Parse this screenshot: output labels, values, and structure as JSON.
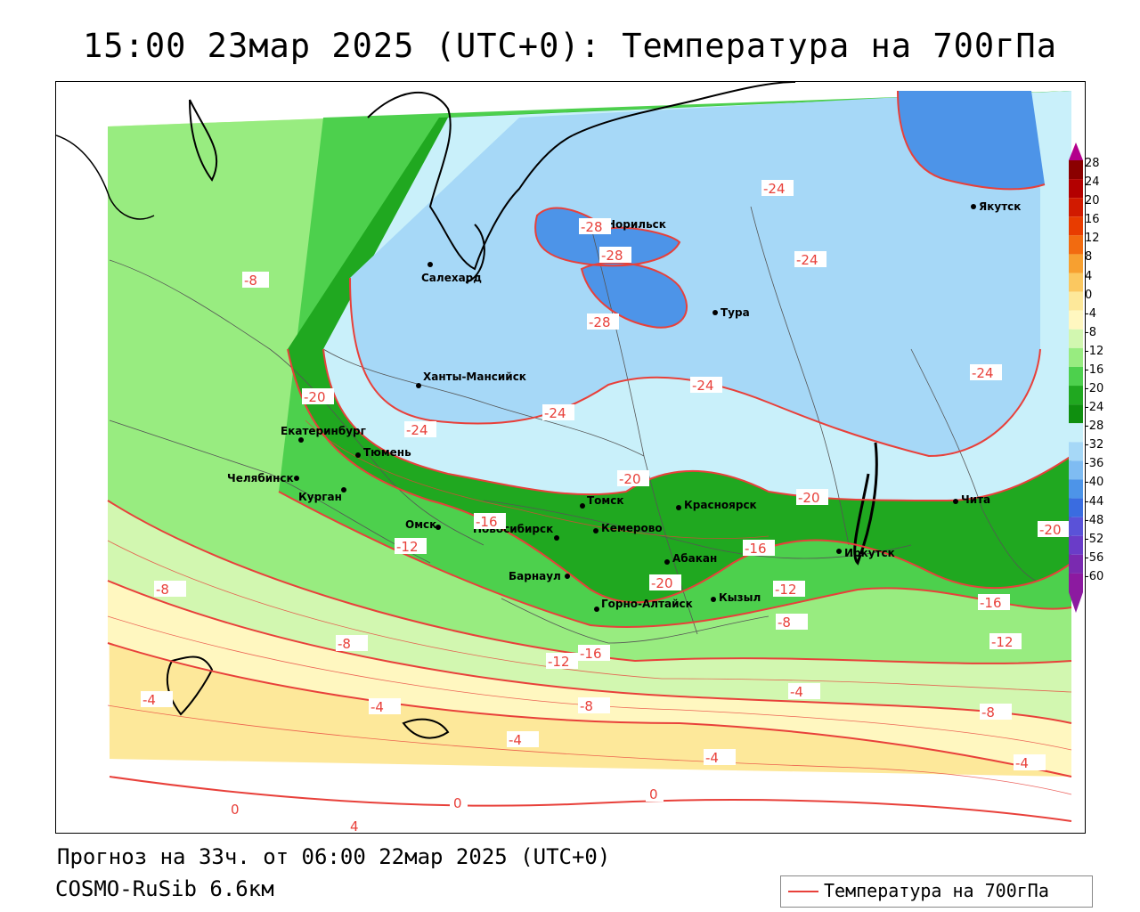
{
  "title": "15:00 23мар 2025 (UTC+0): Температура на 700гПа",
  "forecast_note": "Прогноз на 33ч. от 06:00 22мар 2025 (UTC+0)",
  "model_name": "COSMO-RuSib 6.6км",
  "legend": {
    "label": "Температура на 700гПа",
    "line_color": "#e8403a"
  },
  "scale": {
    "labels": [
      "28",
      "24",
      "20",
      "16",
      "12",
      "8",
      "4",
      "0",
      "-4",
      "-8",
      "-12",
      "-16",
      "-20",
      "-24",
      "-28",
      "-32",
      "-36",
      "-40",
      "-44",
      "-48",
      "-52",
      "-56",
      "-60"
    ],
    "colors": [
      "#8b0000",
      "#b30000",
      "#d11a00",
      "#e83c00",
      "#f26b10",
      "#f7a030",
      "#fbc860",
      "#fde89a",
      "#fff7c0",
      "#d2f7b0",
      "#98ec80",
      "#4dd04d",
      "#20a820",
      "#0f8f0f",
      "#c9f0fa",
      "#a6d8f7",
      "#7fbcf2",
      "#4d94e8",
      "#3a6ce0",
      "#5a52d8",
      "#6a3cc8",
      "#7a2ab0",
      "#8c1aa0"
    ]
  },
  "cities": [
    {
      "name": "Норильск"
    },
    {
      "name": "Якутск"
    },
    {
      "name": "Салехард"
    },
    {
      "name": "Тура"
    },
    {
      "name": "Ханты-Мансийск"
    },
    {
      "name": "Екатеринбург"
    },
    {
      "name": "Тюмень"
    },
    {
      "name": "Челябинск"
    },
    {
      "name": "Курган"
    },
    {
      "name": "Омск"
    },
    {
      "name": "Томск"
    },
    {
      "name": "Красноярск"
    },
    {
      "name": "Новосибирск"
    },
    {
      "name": "Кемерово"
    },
    {
      "name": "Абакан"
    },
    {
      "name": "Барнаул"
    },
    {
      "name": "Горно-Алтайск"
    },
    {
      "name": "Кызыл"
    },
    {
      "name": "Иркутск"
    },
    {
      "name": "Чита"
    }
  ],
  "isolines": [
    "-28",
    "-28",
    "-28",
    "-24",
    "-24",
    "-24",
    "-24",
    "-24",
    "-24",
    "-20",
    "-20",
    "-20",
    "-20",
    "-20",
    "-16",
    "-16",
    "-16",
    "-16",
    "-12",
    "-12",
    "-12",
    "-12",
    "-8",
    "-8",
    "-8",
    "-8",
    "-8",
    "-4",
    "-4",
    "-4",
    "-4",
    "-4",
    "-4",
    "0",
    "0",
    "0",
    "4",
    "-8"
  ]
}
